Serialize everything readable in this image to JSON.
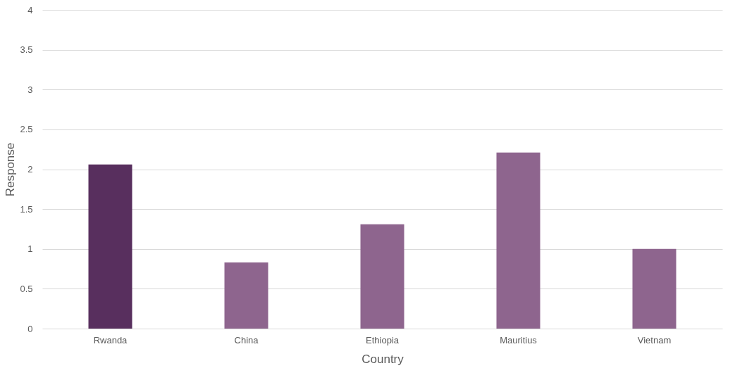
{
  "chart_data": {
    "type": "bar",
    "xlabel": "Country",
    "ylabel": "Response",
    "categories": [
      "Rwanda",
      "China",
      "Ethiopia",
      "Mauritius",
      "Vietnam"
    ],
    "values": [
      2.06,
      0.83,
      1.31,
      2.21,
      1.0
    ],
    "colors": [
      "#582f5e",
      "#8e658e",
      "#8e658e",
      "#8e658e",
      "#8e658e"
    ],
    "ylim": [
      0,
      4
    ],
    "yticks": [
      0,
      0.5,
      1,
      1.5,
      2,
      2.5,
      3,
      3.5,
      4
    ],
    "grid": "y"
  }
}
